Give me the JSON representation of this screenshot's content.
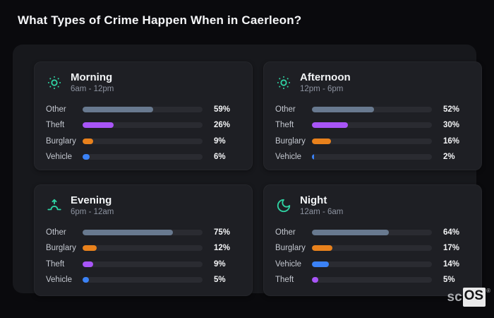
{
  "page": {
    "title": "What Types of Crime Happen When in Caerleon?"
  },
  "brand": {
    "prefix": "sc",
    "suffix": "OS",
    "mark": "®"
  },
  "colors": {
    "background": "#0a0a0d",
    "panel": "#17181c",
    "card": "#1e1f24",
    "track": "#2a2b31",
    "accent_green": "#2fd3a3",
    "other": "#68798f",
    "theft": "#a855f7",
    "burglary": "#e8811c",
    "vehicle": "#3b82f6"
  },
  "cards": [
    {
      "title": "Morning",
      "subtitle": "6am - 12pm",
      "icon": "sun-icon",
      "rows": [
        {
          "label": "Other",
          "value": 59,
          "display": "59%",
          "color": "#68798f"
        },
        {
          "label": "Theft",
          "value": 26,
          "display": "26%",
          "color": "#a855f7"
        },
        {
          "label": "Burglary",
          "value": 9,
          "display": "9%",
          "color": "#e8811c"
        },
        {
          "label": "Vehicle",
          "value": 6,
          "display": "6%",
          "color": "#3b82f6"
        }
      ]
    },
    {
      "title": "Afternoon",
      "subtitle": "12pm - 6pm",
      "icon": "sun-icon",
      "rows": [
        {
          "label": "Other",
          "value": 52,
          "display": "52%",
          "color": "#68798f"
        },
        {
          "label": "Theft",
          "value": 30,
          "display": "30%",
          "color": "#a855f7"
        },
        {
          "label": "Burglary",
          "value": 16,
          "display": "16%",
          "color": "#e8811c"
        },
        {
          "label": "Vehicle",
          "value": 2,
          "display": "2%",
          "color": "#3b82f6"
        }
      ]
    },
    {
      "title": "Evening",
      "subtitle": "6pm - 12am",
      "icon": "sunset-icon",
      "rows": [
        {
          "label": "Other",
          "value": 75,
          "display": "75%",
          "color": "#68798f"
        },
        {
          "label": "Burglary",
          "value": 12,
          "display": "12%",
          "color": "#e8811c"
        },
        {
          "label": "Theft",
          "value": 9,
          "display": "9%",
          "color": "#a855f7"
        },
        {
          "label": "Vehicle",
          "value": 5,
          "display": "5%",
          "color": "#3b82f6"
        }
      ]
    },
    {
      "title": "Night",
      "subtitle": "12am - 6am",
      "icon": "moon-icon",
      "rows": [
        {
          "label": "Other",
          "value": 64,
          "display": "64%",
          "color": "#68798f"
        },
        {
          "label": "Burglary",
          "value": 17,
          "display": "17%",
          "color": "#e8811c"
        },
        {
          "label": "Vehicle",
          "value": 14,
          "display": "14%",
          "color": "#3b82f6"
        },
        {
          "label": "Theft",
          "value": 5,
          "display": "5%",
          "color": "#a855f7"
        }
      ]
    }
  ],
  "chart_data": [
    {
      "type": "bar",
      "orientation": "horizontal",
      "title": "Morning (6am - 12pm)",
      "categories": [
        "Other",
        "Theft",
        "Burglary",
        "Vehicle"
      ],
      "values": [
        59,
        26,
        9,
        6
      ],
      "unit": "%",
      "xlim": [
        0,
        100
      ],
      "grid": false,
      "legend": false
    },
    {
      "type": "bar",
      "orientation": "horizontal",
      "title": "Afternoon (12pm - 6pm)",
      "categories": [
        "Other",
        "Theft",
        "Burglary",
        "Vehicle"
      ],
      "values": [
        52,
        30,
        16,
        2
      ],
      "unit": "%",
      "xlim": [
        0,
        100
      ],
      "grid": false,
      "legend": false
    },
    {
      "type": "bar",
      "orientation": "horizontal",
      "title": "Evening (6pm - 12am)",
      "categories": [
        "Other",
        "Burglary",
        "Theft",
        "Vehicle"
      ],
      "values": [
        75,
        12,
        9,
        5
      ],
      "unit": "%",
      "xlim": [
        0,
        100
      ],
      "grid": false,
      "legend": false
    },
    {
      "type": "bar",
      "orientation": "horizontal",
      "title": "Night (12am - 6am)",
      "categories": [
        "Other",
        "Burglary",
        "Vehicle",
        "Theft"
      ],
      "values": [
        64,
        17,
        14,
        5
      ],
      "unit": "%",
      "xlim": [
        0,
        100
      ],
      "grid": false,
      "legend": false
    }
  ]
}
